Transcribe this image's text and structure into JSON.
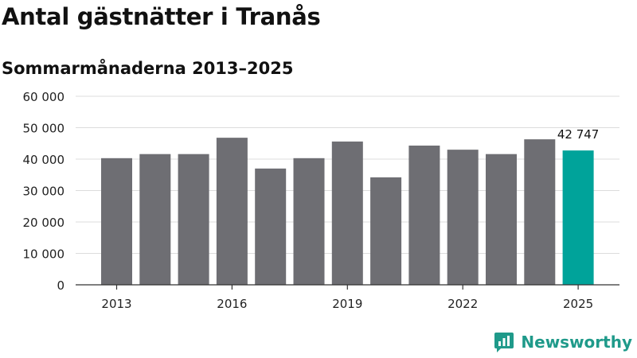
{
  "title": "Antal gästnätter i Tranås",
  "subtitle": "Sommarmånaderna 2013–2025",
  "brand": "Newsworthy",
  "colors": {
    "bar": "#6e6e73",
    "highlight": "#00a39a",
    "grid": "#dcdcdc",
    "brand": "#1f9a8a"
  },
  "chart_data": {
    "type": "bar",
    "categories": [
      "2013",
      "2014",
      "2015",
      "2016",
      "2017",
      "2018",
      "2019",
      "2020",
      "2021",
      "2022",
      "2023",
      "2024",
      "2025"
    ],
    "values": [
      40300,
      41600,
      41600,
      46800,
      37000,
      40300,
      45600,
      34200,
      44300,
      43000,
      41600,
      46300,
      42747
    ],
    "highlight_index": 12,
    "data_labels": [
      {
        "index": 12,
        "text": "42 747"
      }
    ],
    "x_tick_labels": [
      "2013",
      "2016",
      "2019",
      "2022",
      "2025"
    ],
    "y_tick_labels": [
      "0",
      "10 000",
      "20 000",
      "30 000",
      "40 000",
      "50 000",
      "60 000"
    ],
    "ylim": [
      0,
      60000
    ],
    "grid": true,
    "legend": "none"
  }
}
